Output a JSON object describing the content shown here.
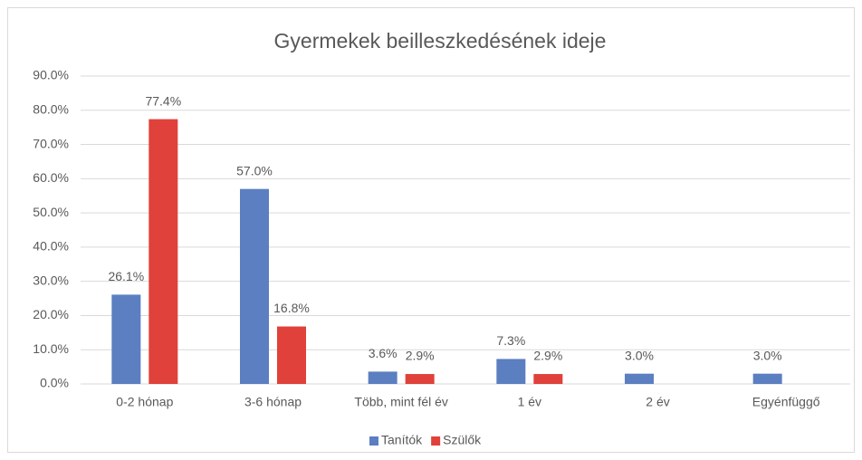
{
  "chart_data": {
    "type": "bar",
    "title": "Gyermekek beilleszkedésének ideje",
    "categories": [
      "0-2 hónap",
      "3-6 hónap",
      "Több, mint fél év",
      "1 év",
      "2 év",
      "Egyénfüggő"
    ],
    "series": [
      {
        "name": "Tanítók",
        "color": "#5b7fc0",
        "values": [
          26.1,
          57.0,
          3.6,
          7.3,
          3.0,
          3.0
        ],
        "value_labels": [
          "26.1%",
          "57.0%",
          "3.6%",
          "7.3%",
          "3.0%",
          "3.0%"
        ]
      },
      {
        "name": "Szülők",
        "color": "#e0413a",
        "values": [
          77.4,
          16.8,
          2.9,
          2.9,
          null,
          null
        ],
        "value_labels": [
          "77.4%",
          "16.8%",
          "2.9%",
          "2.9%",
          null,
          null
        ]
      }
    ],
    "ylim": [
      0,
      90
    ],
    "yticks": [
      {
        "value": 0,
        "label": "0.0%"
      },
      {
        "value": 10,
        "label": "10.0%"
      },
      {
        "value": 20,
        "label": "20.0%"
      },
      {
        "value": 30,
        "label": "30.0%"
      },
      {
        "value": 40,
        "label": "40.0%"
      },
      {
        "value": 50,
        "label": "50.0%"
      },
      {
        "value": 60,
        "label": "60.0%"
      },
      {
        "value": 70,
        "label": "70.0%"
      },
      {
        "value": 80,
        "label": "80.0%"
      },
      {
        "value": 90,
        "label": "90.0%"
      }
    ],
    "grid": true,
    "legend": "bottom"
  }
}
